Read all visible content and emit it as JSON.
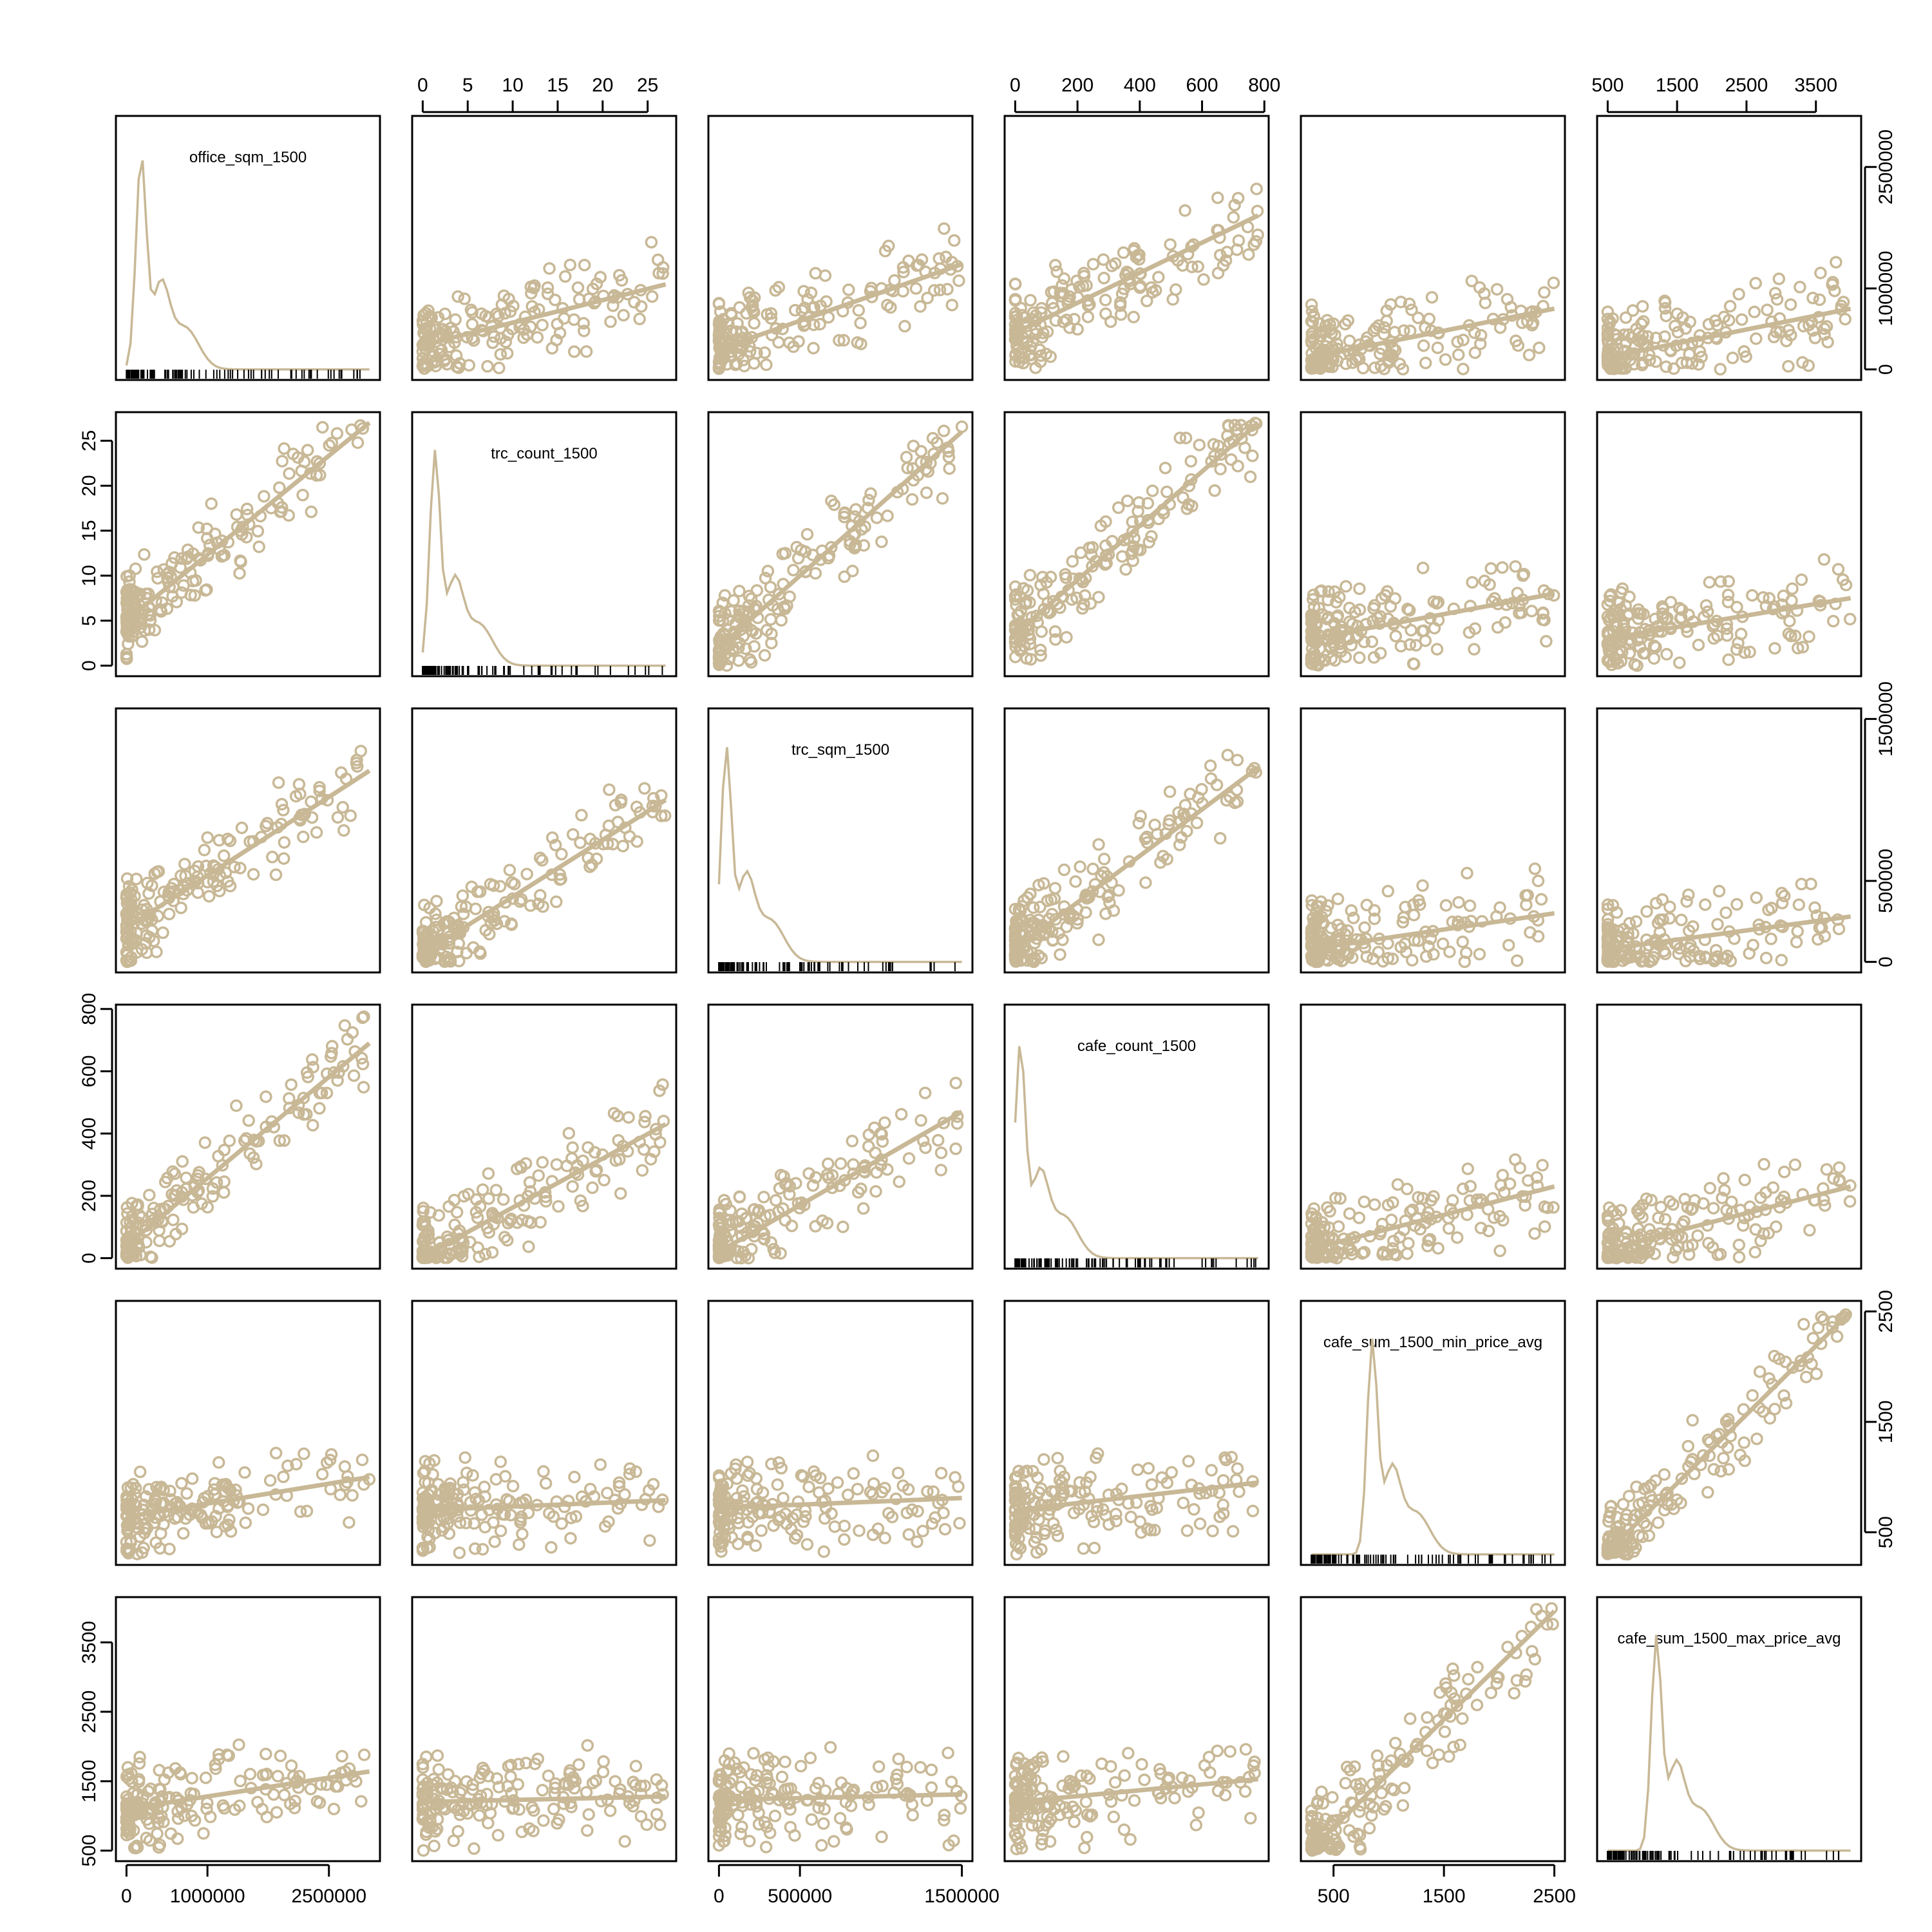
{
  "chart_data": {
    "type": "scatter",
    "title": "",
    "colors": {
      "points": "#c8b896",
      "axes": "#000000",
      "background": "#ffffff"
    },
    "grid": false,
    "variables": [
      {
        "name": "office_sqm_1500",
        "range": [
          0,
          3000000
        ],
        "ticks": [
          0,
          1000000,
          2500000
        ],
        "tick_labels": [
          "0",
          "1000000",
          "2500000"
        ]
      },
      {
        "name": "trc_count_1500",
        "range": [
          0,
          27
        ],
        "ticks": [
          0,
          5,
          10,
          15,
          20,
          25
        ],
        "tick_labels": [
          "0",
          "5",
          "10",
          "15",
          "20",
          "25"
        ]
      },
      {
        "name": "trc_sqm_1500",
        "range": [
          0,
          1500000
        ],
        "ticks": [
          0,
          500000,
          1500000
        ],
        "tick_labels": [
          "0",
          "500000",
          "1500000"
        ]
      },
      {
        "name": "cafe_count_1500",
        "range": [
          0,
          780
        ],
        "ticks": [
          0,
          200,
          400,
          600,
          800
        ],
        "tick_labels": [
          "0",
          "200",
          "400",
          "600",
          "800"
        ]
      },
      {
        "name": "cafe_sum_1500_min_price_avg",
        "range": [
          300,
          2500
        ],
        "ticks": [
          500,
          1500,
          2500
        ],
        "tick_labels": [
          "500",
          "1500",
          "2500"
        ]
      },
      {
        "name": "cafe_sum_1500_max_price_avg",
        "range": [
          500,
          4000
        ],
        "ticks": [
          500,
          1500,
          2500,
          3500
        ],
        "tick_labels": [
          "500",
          "1500",
          "2500",
          "3500"
        ]
      }
    ],
    "top_axis_vars": [
      1,
      3,
      5
    ],
    "bottom_axis_vars": [
      0,
      2,
      4
    ],
    "left_axis_vars": [
      1,
      3,
      5
    ],
    "right_axis_vars": [
      0,
      2,
      4
    ],
    "fit_lines": [
      {
        "x": 0,
        "y": 1,
        "from": [
          0,
          5.0
        ],
        "to": [
          3000000,
          27
        ]
      },
      {
        "x": 0,
        "y": 2,
        "from": [
          0,
          210000
        ],
        "to": [
          3000000,
          1180000
        ]
      },
      {
        "x": 0,
        "y": 3,
        "from": [
          0,
          40
        ],
        "to": [
          3000000,
          690
        ]
      },
      {
        "x": 0,
        "y": 4,
        "from": [
          0,
          640
        ],
        "to": [
          3000000,
          1000
        ]
      },
      {
        "x": 0,
        "y": 5,
        "from": [
          0,
          1100
        ],
        "to": [
          3000000,
          1640
        ]
      },
      {
        "x": 1,
        "y": 0,
        "from": [
          0,
          300000
        ],
        "to": [
          27,
          1050000
        ]
      },
      {
        "x": 1,
        "y": 2,
        "from": [
          0,
          50000
        ],
        "to": [
          27,
          1000000
        ]
      },
      {
        "x": 1,
        "y": 3,
        "from": [
          0,
          5
        ],
        "to": [
          27,
          430
        ]
      },
      {
        "x": 1,
        "y": 4,
        "from": [
          0,
          700
        ],
        "to": [
          27,
          790
        ]
      },
      {
        "x": 1,
        "y": 5,
        "from": [
          0,
          1200
        ],
        "to": [
          27,
          1280
        ]
      },
      {
        "x": 2,
        "y": 0,
        "from": [
          0,
          250000
        ],
        "to": [
          1500000,
          1300000
        ]
      },
      {
        "x": 2,
        "y": 1,
        "from": [
          0,
          2.0
        ],
        "to": [
          1500000,
          26
        ]
      },
      {
        "x": 2,
        "y": 3,
        "from": [
          0,
          20
        ],
        "to": [
          1500000,
          470
        ]
      },
      {
        "x": 2,
        "y": 4,
        "from": [
          0,
          720
        ],
        "to": [
          1500000,
          810
        ]
      },
      {
        "x": 2,
        "y": 5,
        "from": [
          0,
          1230
        ],
        "to": [
          1500000,
          1310
        ]
      },
      {
        "x": 3,
        "y": 0,
        "from": [
          0,
          450000
        ],
        "to": [
          780,
          1900000
        ]
      },
      {
        "x": 3,
        "y": 1,
        "from": [
          0,
          3.5
        ],
        "to": [
          780,
          27
        ]
      },
      {
        "x": 3,
        "y": 2,
        "from": [
          0,
          80000
        ],
        "to": [
          780,
          1200000
        ]
      },
      {
        "x": 3,
        "y": 4,
        "from": [
          0,
          700
        ],
        "to": [
          780,
          950
        ]
      },
      {
        "x": 3,
        "y": 5,
        "from": [
          0,
          1200
        ],
        "to": [
          780,
          1530
        ]
      },
      {
        "x": 4,
        "y": 0,
        "from": [
          300,
          150000
        ],
        "to": [
          2500,
          750000
        ]
      },
      {
        "x": 4,
        "y": 1,
        "from": [
          300,
          3.0
        ],
        "to": [
          2500,
          8.0
        ]
      },
      {
        "x": 4,
        "y": 2,
        "from": [
          300,
          80000
        ],
        "to": [
          2500,
          300000
        ]
      },
      {
        "x": 4,
        "y": 3,
        "from": [
          300,
          30
        ],
        "to": [
          2500,
          230
        ]
      },
      {
        "x": 4,
        "y": 5,
        "from": [
          300,
          520
        ],
        "to": [
          2500,
          3950
        ]
      },
      {
        "x": 5,
        "y": 0,
        "from": [
          500,
          150000
        ],
        "to": [
          4000,
          750000
        ]
      },
      {
        "x": 5,
        "y": 1,
        "from": [
          500,
          3.0
        ],
        "to": [
          4000,
          7.5
        ]
      },
      {
        "x": 5,
        "y": 2,
        "from": [
          500,
          80000
        ],
        "to": [
          4000,
          280000
        ]
      },
      {
        "x": 5,
        "y": 3,
        "from": [
          500,
          30
        ],
        "to": [
          4000,
          230
        ]
      },
      {
        "x": 5,
        "y": 4,
        "from": [
          500,
          320
        ],
        "to": [
          4000,
          2500
        ]
      }
    ]
  }
}
